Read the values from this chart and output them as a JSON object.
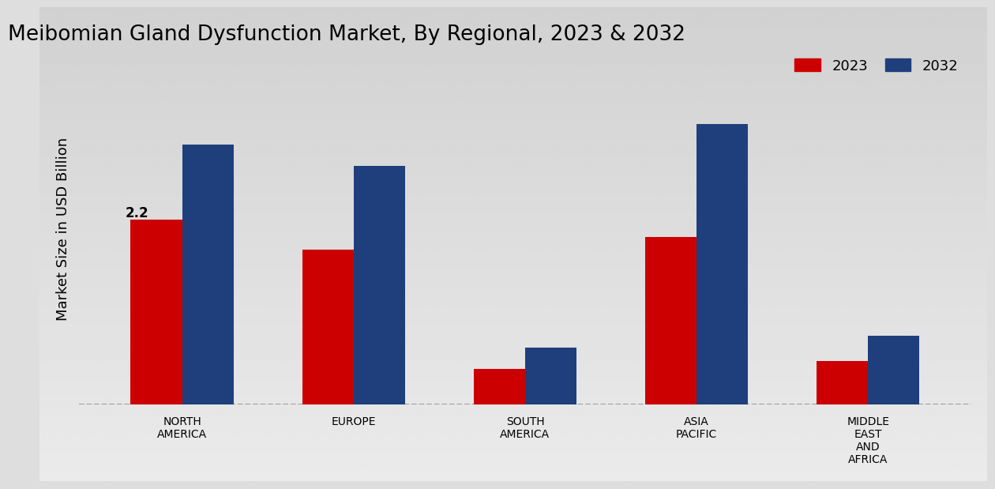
{
  "title": "Meibomian Gland Dysfunction Market, By Regional, 2023 & 2032",
  "ylabel": "Market Size in USD Billion",
  "categories": [
    "NORTH\nAMERICA",
    "EUROPE",
    "SOUTH\nAMERICA",
    "ASIA\nPACIFIC",
    "MIDDLE\nEAST\nAND\nAFRICA"
  ],
  "values_2023": [
    2.2,
    1.85,
    0.42,
    2.0,
    0.52
  ],
  "values_2032": [
    3.1,
    2.85,
    0.68,
    3.35,
    0.82
  ],
  "color_2023": "#cc0000",
  "color_2032": "#1e3f7c",
  "bar_width": 0.3,
  "label_2023": "2023",
  "label_2032": "2032",
  "annotation_text": "2.2",
  "annotation_bar_idx": 0,
  "ylim_min": 0,
  "ylim_max": 4.2,
  "bg_color_top": "#dcdcdc",
  "bg_color_bottom": "#c8c8c8",
  "title_fontsize": 19,
  "axis_label_fontsize": 13,
  "tick_label_fontsize": 10,
  "legend_fontsize": 13,
  "red_bar_bottom": "#cc0000"
}
